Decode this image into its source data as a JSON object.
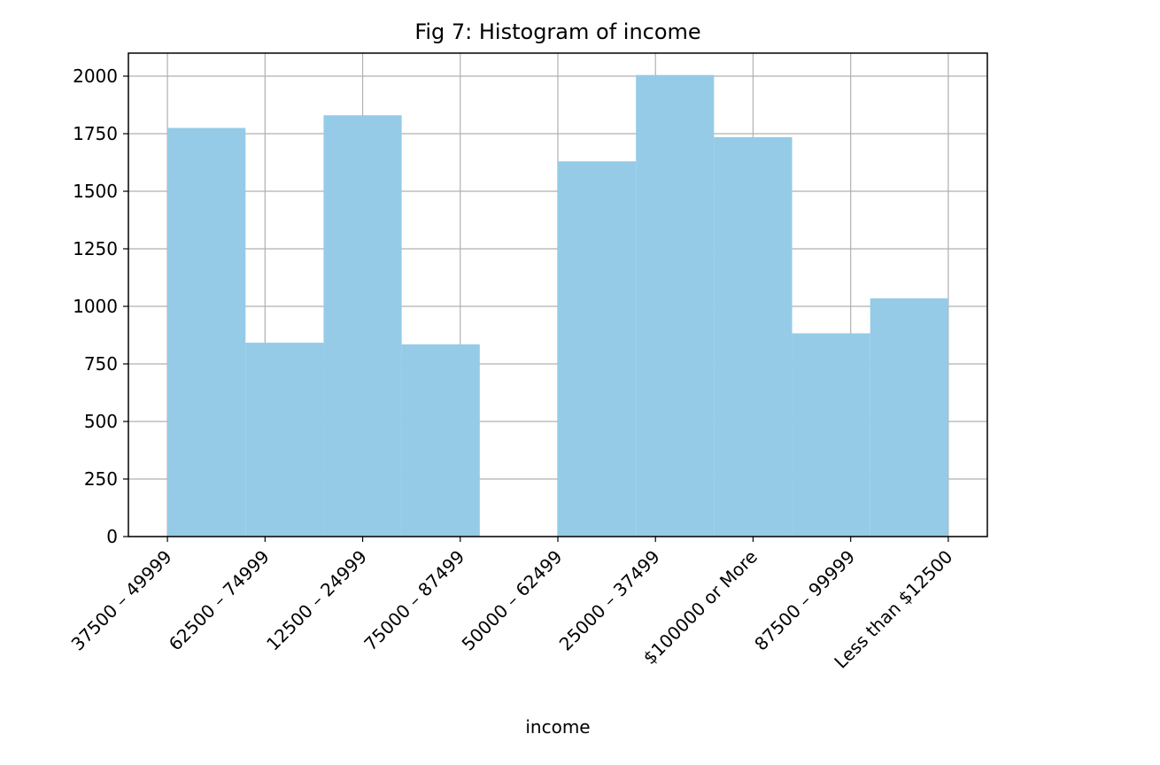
{
  "chart_data": {
    "type": "bar",
    "title": "Fig 7: Histogram of income",
    "xlabel": "income",
    "ylabel": "",
    "categories": [
      "$37500-$49999",
      "$62500-$74999",
      "$12500-$24999",
      "$75000-$87499",
      "$50000-$62499",
      "$25000-$37499",
      "$100000 or More",
      "$87500-$99999",
      "Less than $12500"
    ],
    "x_tick_labels": [
      "37500 – 49999",
      "62500 – 74999",
      "12500 – 24999",
      "75000 – 87499",
      "50000 – 62499",
      "25000 – 37499",
      "$100000 or More",
      "87500 – 99999",
      "Less than $12500"
    ],
    "bins": {
      "start": 0,
      "end": 8,
      "count": 10,
      "counts": [
        1775,
        842,
        1830,
        835,
        0,
        1630,
        2005,
        1735,
        883,
        1035
      ]
    },
    "ylim": [
      0,
      2100
    ],
    "xlim": [
      -0.4,
      8.4
    ],
    "yticks": [
      0,
      250,
      500,
      750,
      1000,
      1250,
      1500,
      1750,
      2000
    ],
    "grid": true,
    "bar_color": "#95cbe6",
    "grid_color": "#b0b0b0"
  }
}
